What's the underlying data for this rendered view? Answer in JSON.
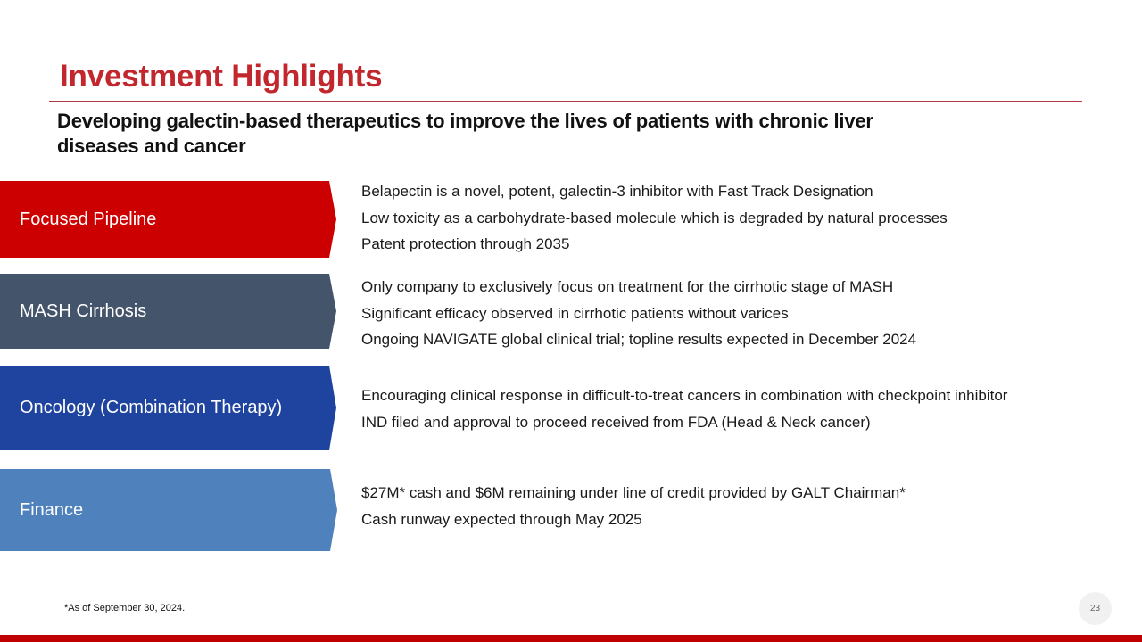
{
  "slide": {
    "title": "Investment Highlights",
    "subtitle": "Developing galectin-based therapeutics to improve the lives of patients with chronic liver diseases and cancer",
    "footnote": "*As of September 30, 2024.",
    "page_number": "23"
  },
  "colors": {
    "title": "#c1272d",
    "focused_pipeline": "#cc0000",
    "mash_cirrhosis": "#44546a",
    "oncology": "#1f44a0",
    "finance": "#4f81bd",
    "bottom_bar": "#c00000"
  },
  "sections": [
    {
      "label": "Focused Pipeline",
      "bullets": [
        "Belapectin is a novel, potent, galectin-3 inhibitor with Fast Track Designation",
        "Low toxicity as a carbohydrate-based molecule which is degraded by natural processes",
        "Patent protection through 2035"
      ]
    },
    {
      "label": "MASH Cirrhosis",
      "bullets": [
        "Only company to exclusively focus on treatment for the cirrhotic stage of MASH",
        "Significant efficacy observed in cirrhotic patients without varices",
        "Ongoing NAVIGATE global clinical trial; topline results expected in December 2024"
      ]
    },
    {
      "label": "Oncology (Combination Therapy)",
      "bullets": [
        "Encouraging clinical response in difficult-to-treat cancers in combination with checkpoint inhibitor",
        "IND filed and approval to proceed received from FDA (Head & Neck cancer)"
      ]
    },
    {
      "label": "Finance",
      "bullets": [
        "$27M* cash and $6M remaining under line of credit provided by GALT Chairman*",
        "Cash runway expected through May 2025"
      ]
    }
  ]
}
